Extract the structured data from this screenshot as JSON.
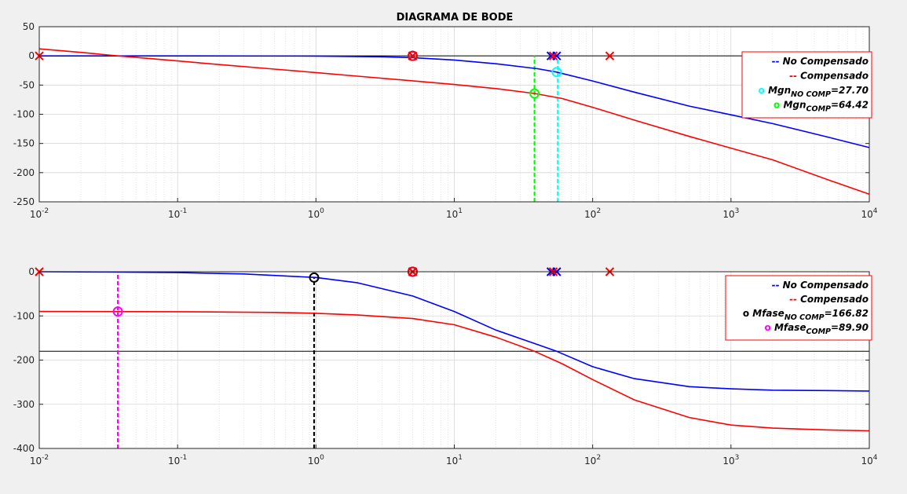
{
  "title": "DIAGRAMA DE BODE",
  "colors": {
    "no_comp": "#0000ff",
    "comp": "#ff0000",
    "mgn_no_comp": "#00ffff",
    "mgn_comp": "#00ff00",
    "mf_no_comp": "#000000",
    "mf_comp": "#ff00ff",
    "grid": "#d6d6d6",
    "ref_line": "#000000"
  },
  "chart_data": [
    {
      "type": "line",
      "name": "magnitude",
      "xscale": "log",
      "xlim": [
        0.01,
        10000
      ],
      "ylim": [
        -250,
        50
      ],
      "yticks": [
        50,
        0,
        -50,
        -100,
        -150,
        -200,
        -250
      ],
      "ytick_labels": [
        "50",
        "0",
        "-50",
        "-100",
        "-150",
        "-200",
        "-250"
      ],
      "xtick_labels": [
        {
          "base": "10",
          "exp": "-2"
        },
        {
          "base": "10",
          "exp": "-1"
        },
        {
          "base": "10",
          "exp": "0"
        },
        {
          "base": "10",
          "exp": "1"
        },
        {
          "base": "10",
          "exp": "2"
        },
        {
          "base": "10",
          "exp": "3"
        },
        {
          "base": "10",
          "exp": "4"
        }
      ],
      "grid": true,
      "reference_y": 0,
      "series": [
        {
          "key": "no_comp",
          "color": "#0000ff",
          "x": [
            0.01,
            0.1,
            1,
            3,
            5,
            10,
            20,
            40,
            55,
            100,
            200,
            500,
            1000,
            2000,
            5000,
            10000
          ],
          "y": [
            0,
            0,
            -0.3,
            -1.5,
            -3,
            -7,
            -13.5,
            -22,
            -27.7,
            -43,
            -62,
            -86,
            -101,
            -116,
            -139,
            -157
          ]
        },
        {
          "key": "comp",
          "color": "#ff0000",
          "x": [
            0.01,
            0.02,
            0.037,
            0.05,
            0.1,
            0.2,
            0.5,
            1,
            2,
            5,
            10,
            20,
            38,
            60,
            100,
            200,
            500,
            1000,
            2000,
            5000,
            10000
          ],
          "y": [
            12,
            6,
            0,
            -2.6,
            -8.7,
            -14.8,
            -22.6,
            -28.6,
            -34.7,
            -42.7,
            -49,
            -56,
            -64.4,
            -73,
            -88,
            -110,
            -138,
            -158,
            -178,
            -212,
            -237
          ]
        }
      ],
      "markers_x": [
        {
          "x": 0.01,
          "y": 0,
          "color": "#ff0000",
          "lw": 2
        },
        {
          "x": 5,
          "y": 0,
          "color": "#0000ff",
          "lw": 2
        },
        {
          "x": 5,
          "y": 0,
          "color": "#ff0000",
          "lw": 2
        },
        {
          "x": 50,
          "y": 0,
          "color": "#0000ff",
          "lw": 2
        },
        {
          "x": 55,
          "y": 0,
          "color": "#0000ff",
          "lw": 2
        },
        {
          "x": 52,
          "y": 0,
          "color": "#ff0000",
          "lw": 2
        },
        {
          "x": 133,
          "y": 0,
          "color": "#ff0000",
          "lw": 2
        }
      ],
      "markers_o": [
        {
          "x": 5,
          "y": 0,
          "color": "#0000ff"
        },
        {
          "x": 5,
          "y": 0,
          "color": "#ff0000"
        },
        {
          "x": 55,
          "y": -27.7,
          "color": "#00ffff"
        },
        {
          "x": 38,
          "y": -64.4,
          "color": "#00ff00"
        }
      ],
      "vlines": [
        {
          "x": 38,
          "y_from": -250,
          "y_to": 0,
          "color": "#00ff00"
        },
        {
          "x": 56,
          "y_from": -250,
          "y_to": 0,
          "color": "#00ffff"
        }
      ],
      "legend": {
        "position": "top-right",
        "entries": [
          {
            "sym": "--",
            "color": "#0000ff",
            "text": "No Compensado",
            "sub": "",
            "after": ""
          },
          {
            "sym": "--",
            "color": "#ff0000",
            "text": "Compensado",
            "sub": "",
            "after": ""
          },
          {
            "sym": "o",
            "color": "#00ffff",
            "text": "Mgn",
            "sub": "NO COMP",
            "after": "=27.70"
          },
          {
            "sym": "o",
            "color": "#00ff00",
            "text": "Mgn",
            "sub": "COMP",
            "after": "=64.42"
          }
        ]
      }
    },
    {
      "type": "line",
      "name": "phase",
      "xscale": "log",
      "xlim": [
        0.01,
        10000
      ],
      "ylim": [
        -400,
        0
      ],
      "yticks": [
        0,
        -100,
        -200,
        -300,
        -400
      ],
      "ytick_labels": [
        "0",
        "-100",
        "-200",
        "-300",
        "-400"
      ],
      "xtick_labels": [
        {
          "base": "10",
          "exp": "-2"
        },
        {
          "base": "10",
          "exp": "-1"
        },
        {
          "base": "10",
          "exp": "0"
        },
        {
          "base": "10",
          "exp": "1"
        },
        {
          "base": "10",
          "exp": "2"
        },
        {
          "base": "10",
          "exp": "3"
        },
        {
          "base": "10",
          "exp": "4"
        }
      ],
      "grid": true,
      "reference_y": -180,
      "series": [
        {
          "key": "no_comp",
          "color": "#0000ff",
          "x": [
            0.01,
            0.03,
            0.1,
            0.3,
            1,
            2,
            5,
            10,
            20,
            40,
            55,
            100,
            200,
            500,
            1000,
            2000,
            5000,
            10000
          ],
          "y": [
            0,
            -0.5,
            -2,
            -5,
            -13,
            -25,
            -55,
            -90,
            -132,
            -165,
            -180,
            -215,
            -242,
            -260,
            -265,
            -268,
            -269,
            -270
          ]
        },
        {
          "key": "comp",
          "color": "#ff0000",
          "x": [
            0.01,
            0.1,
            0.5,
            1,
            2,
            5,
            10,
            20,
            38,
            60,
            100,
            200,
            500,
            1000,
            2000,
            5000,
            10000
          ],
          "y": [
            -90,
            -90.5,
            -92,
            -94,
            -98,
            -106,
            -120,
            -148,
            -180,
            -208,
            -244,
            -290,
            -330,
            -347,
            -354,
            -358,
            -360
          ]
        }
      ],
      "markers_x": [
        {
          "x": 0.01,
          "y": 0,
          "color": "#ff0000",
          "lw": 2
        },
        {
          "x": 5,
          "y": 0,
          "color": "#0000ff",
          "lw": 2
        },
        {
          "x": 5,
          "y": 0,
          "color": "#ff0000",
          "lw": 2
        },
        {
          "x": 50,
          "y": 0,
          "color": "#0000ff",
          "lw": 2
        },
        {
          "x": 55,
          "y": 0,
          "color": "#0000ff",
          "lw": 2
        },
        {
          "x": 52,
          "y": 0,
          "color": "#ff0000",
          "lw": 2
        },
        {
          "x": 133,
          "y": 0,
          "color": "#ff0000",
          "lw": 2
        }
      ],
      "markers_o": [
        {
          "x": 5,
          "y": 0,
          "color": "#0000ff"
        },
        {
          "x": 5,
          "y": 0,
          "color": "#ff0000"
        },
        {
          "x": 0.97,
          "y": -13.18,
          "color": "#000000"
        },
        {
          "x": 0.037,
          "y": -90.1,
          "color": "#ff00ff"
        }
      ],
      "vlines": [
        {
          "x": 0.97,
          "y_from": -400,
          "y_to": -13.18,
          "color": "#000000"
        },
        {
          "x": 0.037,
          "y_from": -400,
          "y_to": 0,
          "color": "#ff00ff"
        }
      ],
      "legend": {
        "position": "top-right",
        "entries": [
          {
            "sym": "--",
            "color": "#0000ff",
            "text": "No Compensado",
            "sub": "",
            "after": ""
          },
          {
            "sym": "--",
            "color": "#ff0000",
            "text": "Compensado",
            "sub": "",
            "after": ""
          },
          {
            "sym": "o",
            "color": "#000000",
            "text": "Mfase",
            "sub": "NO COMP",
            "after": "=166.82"
          },
          {
            "sym": "o",
            "color": "#ff00ff",
            "text": "Mfase",
            "sub": "COMP",
            "after": "=89.90"
          }
        ]
      }
    }
  ]
}
